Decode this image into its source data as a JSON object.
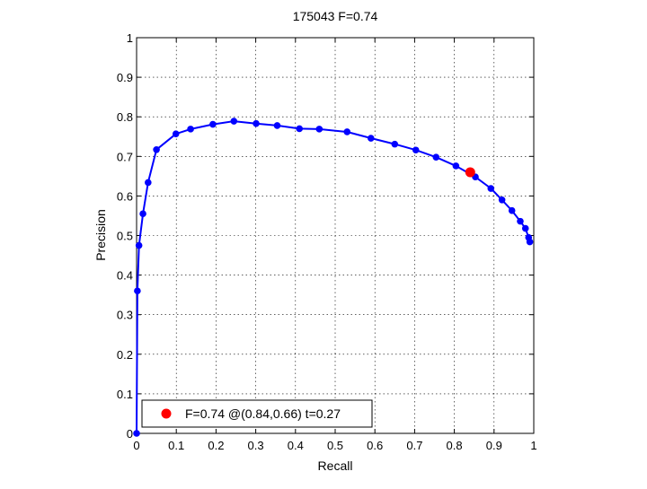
{
  "chart_data": {
    "type": "line",
    "title": "175043 F=0.74",
    "xlabel": "Recall",
    "ylabel": "Precision",
    "xlim": [
      0,
      1
    ],
    "ylim": [
      0,
      1
    ],
    "xticks": [
      0,
      0.1,
      0.2,
      0.3,
      0.4,
      0.5,
      0.6,
      0.7,
      0.8,
      0.9,
      1
    ],
    "yticks": [
      0,
      0.1,
      0.2,
      0.3,
      0.4,
      0.5,
      0.6,
      0.7,
      0.8,
      0.9,
      1
    ],
    "xtick_labels": [
      "0",
      "0.1",
      "0.2",
      "0.3",
      "0.4",
      "0.5",
      "0.6",
      "0.7",
      "0.8",
      "0.9",
      "1"
    ],
    "ytick_labels": [
      "0",
      "0.1",
      "0.2",
      "0.3",
      "0.4",
      "0.5",
      "0.6",
      "0.7",
      "0.8",
      "0.9",
      "1"
    ],
    "grid": true,
    "legend_position": "bottom-left",
    "series": [
      {
        "color": "#0000ff",
        "marker": "circle",
        "points": [
          {
            "x": 0,
            "y": 0
          },
          {
            "x": 0.002,
            "y": 0.36
          },
          {
            "x": 0.006,
            "y": 0.475
          },
          {
            "x": 0.016,
            "y": 0.555
          },
          {
            "x": 0.029,
            "y": 0.634
          },
          {
            "x": 0.05,
            "y": 0.717
          },
          {
            "x": 0.099,
            "y": 0.757
          },
          {
            "x": 0.136,
            "y": 0.769
          },
          {
            "x": 0.192,
            "y": 0.781
          },
          {
            "x": 0.245,
            "y": 0.789
          },
          {
            "x": 0.301,
            "y": 0.783
          },
          {
            "x": 0.354,
            "y": 0.778
          },
          {
            "x": 0.41,
            "y": 0.77
          },
          {
            "x": 0.46,
            "y": 0.769
          },
          {
            "x": 0.53,
            "y": 0.762
          },
          {
            "x": 0.59,
            "y": 0.746
          },
          {
            "x": 0.65,
            "y": 0.731
          },
          {
            "x": 0.703,
            "y": 0.716
          },
          {
            "x": 0.754,
            "y": 0.698
          },
          {
            "x": 0.804,
            "y": 0.676
          },
          {
            "x": 0.853,
            "y": 0.648
          },
          {
            "x": 0.892,
            "y": 0.619
          },
          {
            "x": 0.92,
            "y": 0.59
          },
          {
            "x": 0.945,
            "y": 0.563
          },
          {
            "x": 0.966,
            "y": 0.536
          },
          {
            "x": 0.979,
            "y": 0.518
          },
          {
            "x": 0.987,
            "y": 0.495
          },
          {
            "x": 0.99,
            "y": 0.484
          }
        ]
      }
    ],
    "best_point": {
      "x": 0.84,
      "y": 0.66,
      "color": "#ff0000",
      "marker": "circle"
    },
    "legend": {
      "entries": [
        {
          "label": "F=0.74 @(0.84,0.66) t=0.27",
          "color": "#ff0000",
          "marker": "circle"
        }
      ]
    }
  }
}
